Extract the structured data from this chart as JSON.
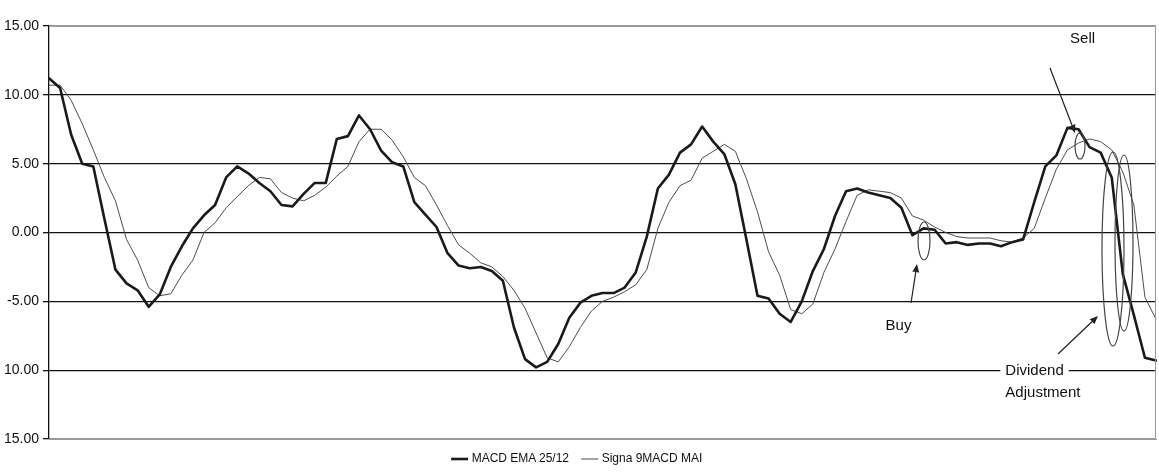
{
  "chart_data": {
    "type": "line",
    "ylim": [
      -15,
      15
    ],
    "yticks": [
      {
        "value": 15,
        "label": "15.00"
      },
      {
        "value": 10,
        "label": "10.00"
      },
      {
        "value": 5,
        "label": "5.00"
      },
      {
        "value": 0,
        "label": "0.00"
      },
      {
        "value": -5,
        "label": "-5.00"
      },
      {
        "value": -10,
        "label": "10.00"
      },
      {
        "value": -15,
        "label": "15.00"
      }
    ],
    "tick_labels": "y",
    "grid": "y",
    "legend": "bottom",
    "marker": "none",
    "line_style": "solid",
    "annotations": [
      "Sell",
      "Buy",
      "Dividend Adjustment"
    ],
    "categories": [
      null,
      null,
      null,
      null,
      null,
      null,
      null,
      null,
      null,
      null,
      null,
      null,
      null,
      null,
      null,
      null,
      null,
      null,
      null,
      null,
      null,
      null,
      null,
      null,
      null,
      null,
      null,
      null,
      null,
      null,
      null,
      null,
      null,
      null,
      null,
      null,
      null,
      null,
      null,
      null,
      null,
      null,
      null,
      null,
      null,
      null,
      null,
      null,
      null,
      null,
      null,
      null,
      null,
      null,
      null,
      null,
      null,
      null,
      null,
      null,
      null,
      null,
      null,
      null,
      null,
      null,
      null,
      null,
      null,
      null,
      null,
      null,
      null,
      null,
      null,
      null,
      null,
      null,
      null,
      null,
      null,
      null,
      null,
      null,
      null,
      null,
      null,
      null,
      null,
      null,
      null,
      null,
      null,
      null,
      null,
      null,
      null,
      null,
      null,
      null,
      null
    ],
    "series": [
      {
        "name": "MACD EMA 25/12",
        "color": "#1a1a1a",
        "values": [
          11.2,
          10.5,
          7.1,
          5.0,
          4.8,
          1.0,
          -2.7,
          -3.7,
          -4.2,
          -5.4,
          -4.5,
          -2.5,
          -1.0,
          0.3,
          1.25,
          2.0,
          4.0,
          4.8,
          4.3,
          3.6,
          3.0,
          2.0,
          1.9,
          2.8,
          3.6,
          3.6,
          6.8,
          7.0,
          8.5,
          7.5,
          5.95,
          5.1,
          4.8,
          2.2,
          1.3,
          0.4,
          -1.5,
          -2.4,
          -2.6,
          -2.5,
          -2.8,
          -3.5,
          -6.9,
          -9.2,
          -9.8,
          -9.4,
          -8.1,
          -6.2,
          -5.1,
          -4.6,
          -4.4,
          -4.4,
          -4.0,
          -2.9,
          -0.3,
          3.2,
          4.2,
          5.8,
          6.4,
          7.7,
          6.6,
          5.7,
          3.5,
          -0.5,
          -4.6,
          -4.8,
          -5.9,
          -6.5,
          -5.0,
          -2.8,
          -1.2,
          1.2,
          3.0,
          3.2,
          2.9,
          2.7,
          2.5,
          1.8,
          -0.2,
          0.3,
          0.2,
          -0.8,
          -0.7,
          -0.9,
          -0.8,
          -0.8,
          -1.0,
          -0.7,
          -0.5,
          2.2,
          4.8,
          5.6,
          7.6,
          7.5,
          6.2,
          5.8,
          4.0,
          -3.0,
          -6.0,
          -9.1,
          -9.3
        ]
      },
      {
        "name": "Signa 9MACD MAI",
        "color": "#4d4d4d",
        "values": [
          10.7,
          10.7,
          9.6,
          7.9,
          6.0,
          4.0,
          2.3,
          -0.5,
          -2.0,
          -4.0,
          -4.6,
          -4.45,
          -3.1,
          -2.0,
          0.0,
          0.7,
          1.8,
          2.6,
          3.4,
          4.0,
          3.9,
          2.9,
          2.5,
          2.3,
          2.7,
          3.3,
          4.1,
          4.8,
          6.6,
          7.5,
          7.5,
          6.7,
          5.5,
          4.0,
          3.4,
          2.0,
          0.5,
          -0.9,
          -1.5,
          -2.2,
          -2.5,
          -3.2,
          -4.2,
          -5.5,
          -7.3,
          -9.1,
          -9.4,
          -8.3,
          -6.9,
          -5.7,
          -5.0,
          -4.7,
          -4.3,
          -3.8,
          -2.7,
          0.3,
          2.2,
          3.4,
          3.8,
          5.4,
          5.9,
          6.4,
          5.9,
          3.9,
          1.5,
          -1.4,
          -3.1,
          -5.6,
          -5.9,
          -5.2,
          -2.9,
          -1.2,
          0.8,
          2.7,
          3.1,
          3.0,
          2.9,
          2.5,
          1.2,
          0.9,
          0.4,
          0.0,
          -0.3,
          -0.4,
          -0.4,
          -0.4,
          -0.6,
          -0.7,
          -0.4,
          0.3,
          2.5,
          4.6,
          6.0,
          6.5,
          6.8,
          6.6,
          6.0,
          4.4,
          2.0,
          -4.7,
          -6.3
        ]
      }
    ]
  }
}
